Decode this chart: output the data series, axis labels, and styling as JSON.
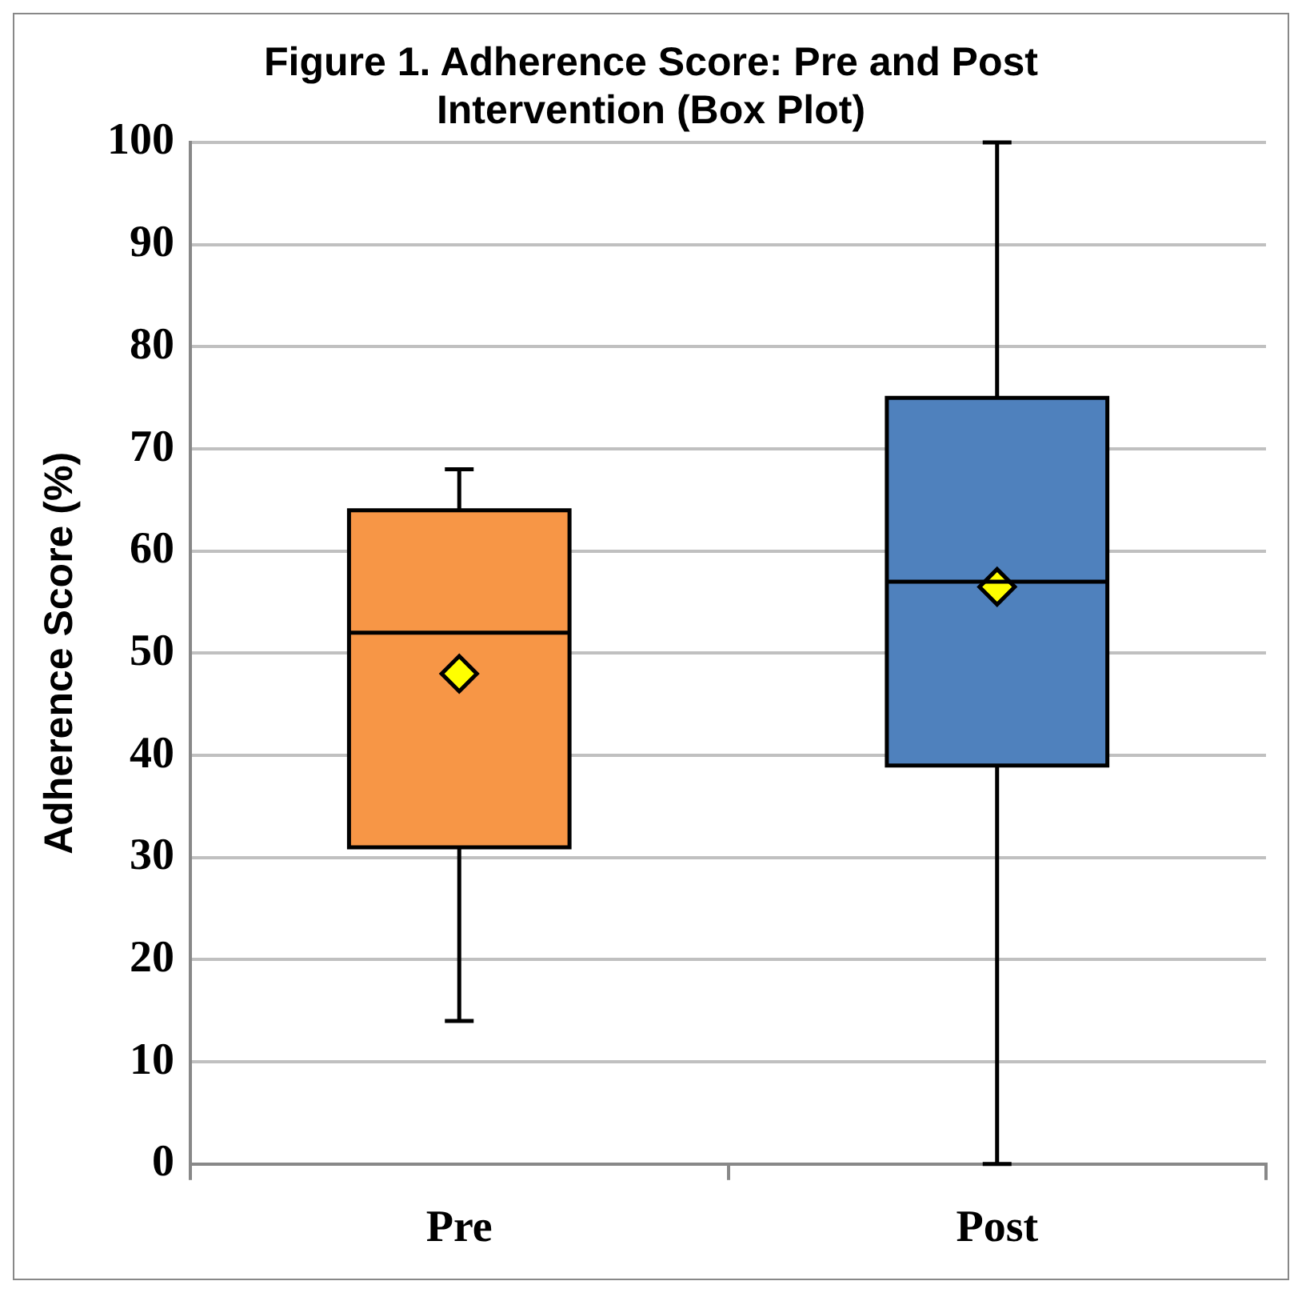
{
  "chart_data": {
    "type": "box",
    "title": "Figure 1. Adherence Score: Pre and Post Intervention (Box Plot)",
    "ylabel": "Adherence Score (%)",
    "categories": [
      "Pre",
      "Post"
    ],
    "boxes": [
      {
        "low": 14,
        "q1": 31,
        "median": 52,
        "q3": 64,
        "high": 68,
        "mean": 48
      },
      {
        "low": 0,
        "q1": 39,
        "median": 57,
        "q3": 75,
        "high": 100,
        "mean": 56.5
      }
    ],
    "colors": [
      "#f79646",
      "#4f81bd"
    ],
    "ylim": [
      0,
      100
    ],
    "yticks": [
      0,
      10,
      20,
      30,
      40,
      50,
      60,
      70,
      80,
      90,
      100
    ],
    "grid": "y",
    "legend": false
  }
}
